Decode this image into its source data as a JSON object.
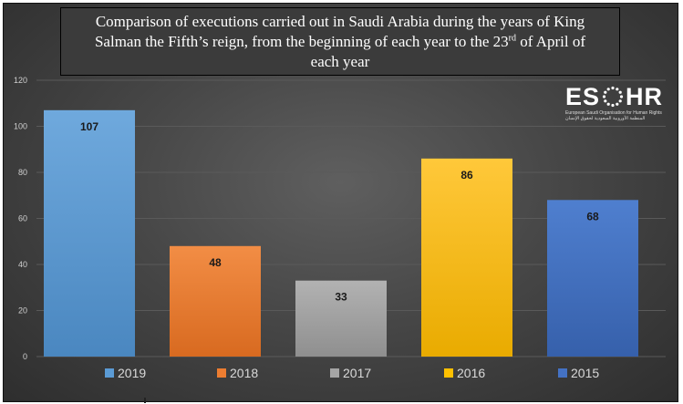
{
  "title": {
    "line1": "Comparison of executions carried out in Saudi Arabia during the years of King",
    "line2_before_sup": "Salman the Fifth’s reign, from the beginning of each year to the 23",
    "line2_sup": "rd",
    "line2_after_sup": " of April of",
    "line3": "each year"
  },
  "logo": {
    "left_text": "ES",
    "right_text": "HR",
    "subtitle": "European Saudi Organisation for Human Rights",
    "subtitle_ar": "المنظمة الأوروبية السعودية لحقوق الإنسان"
  },
  "colors": {
    "background": "#474747",
    "grid": "#5a5a5a",
    "tick_text": "#cfcfcf",
    "legend_text": "#d9d9d9",
    "label_text": "#1a1a1a"
  },
  "chart_data": {
    "type": "bar",
    "categories": [
      "2019",
      "2018",
      "2017",
      "2016",
      "2015"
    ],
    "values": [
      107,
      48,
      33,
      86,
      68
    ],
    "bar_colors": [
      "#5b9bd5",
      "#ed7d31",
      "#a5a5a5",
      "#ffc000",
      "#4472c4"
    ],
    "title": "Comparison of executions carried out in Saudi Arabia during the years of King Salman the Fifth’s reign, from the beginning of each year to the 23rd of April of each year",
    "xlabel": "",
    "ylabel": "",
    "ylim": [
      0,
      120
    ],
    "yticks": [
      0,
      20,
      40,
      60,
      80,
      100,
      120
    ],
    "grid": true,
    "legend": {
      "position": "bottom",
      "entries": [
        "2019",
        "2018",
        "2017",
        "2016",
        "2015"
      ]
    },
    "data_labels": [
      "107",
      "48",
      "33",
      "86",
      "68"
    ]
  }
}
